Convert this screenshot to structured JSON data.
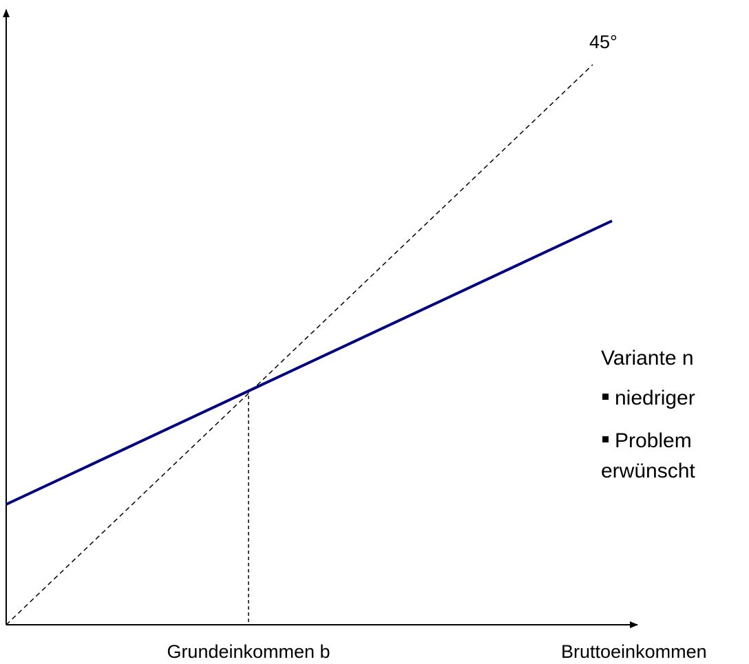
{
  "labels": {
    "angle": "45°",
    "x_marker": "Grundeinkommen b",
    "x_axis": "Bruttoeinkommen"
  },
  "text": {
    "heading": "Variante n",
    "bullets": [
      "niedriger",
      "Problem"
    ],
    "continuation": "erwünscht"
  }
}
